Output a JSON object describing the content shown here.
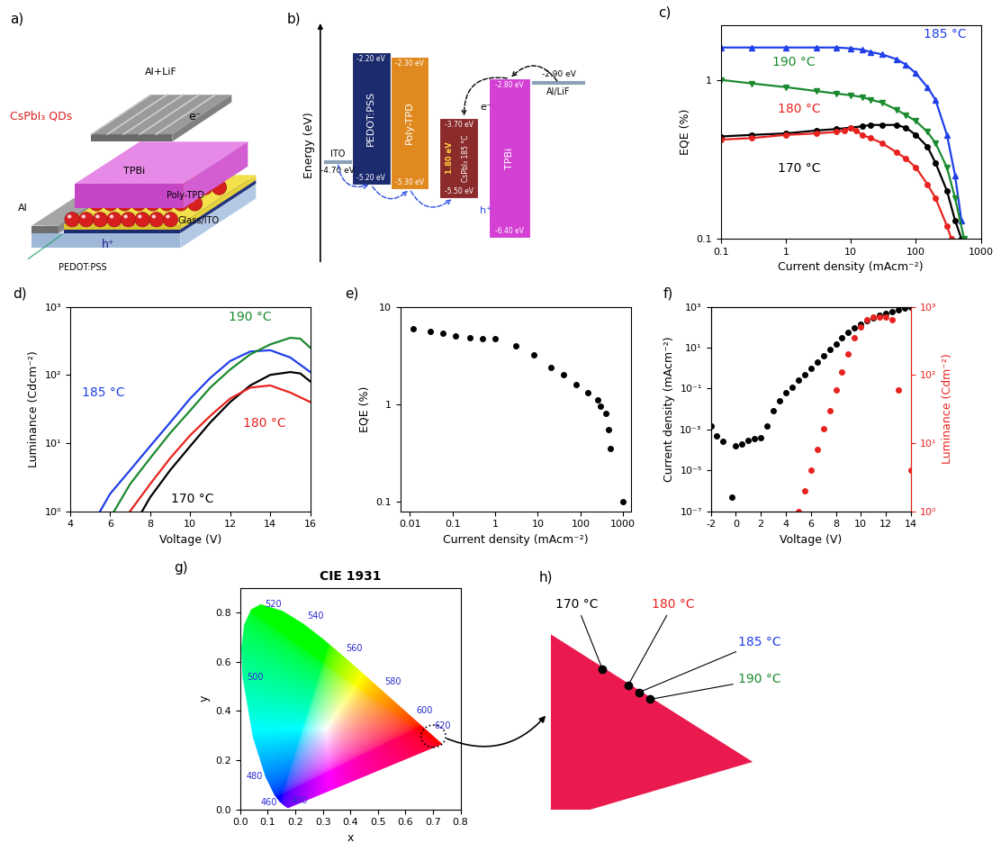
{
  "schematic": {
    "panel": "a)",
    "labels": {
      "qds": "CsPbI₃ QDs",
      "cathode": "Al+LiF",
      "etl": "TPBi",
      "htl": "Poly-TPD",
      "substrate": "Glass/ITO",
      "hil": "PEDOT:PSS",
      "contact": "Al",
      "electron": "e⁻",
      "hole": "h⁺"
    }
  },
  "energy_diagram": {
    "panel": "b)",
    "ylabel": "Energy (eV)",
    "ylim": [
      -7.0,
      -1.6
    ],
    "electrodes": [
      {
        "name": "ITO",
        "level": {
          "value": -4.7,
          "label": "-4.70 eV"
        }
      },
      {
        "name": "Al/LiF",
        "level": {
          "value": -2.9,
          "label": "-2.90 eV"
        }
      }
    ],
    "layers": [
      {
        "name": "PEDOT:PSS",
        "color": "#1c2b6e",
        "lumo": {
          "value": -2.2,
          "label": "-2.20 eV"
        },
        "homo": {
          "value": -5.2,
          "label": "-5.20 eV"
        }
      },
      {
        "name": "Poly-TPD",
        "color": "#e0891f",
        "lumo": {
          "value": -2.3,
          "label": "-2.30 eV"
        },
        "homo": {
          "value": -5.3,
          "label": "-5.30 eV"
        }
      },
      {
        "name": "CsPbI₃ 185 °C",
        "color": "#8b2b2b",
        "lumo": {
          "value": -3.7,
          "label": "-3.70 eV"
        },
        "homo": {
          "value": -5.5,
          "label": "-5.50 eV"
        },
        "gap": {
          "value": 1.8,
          "label": "1.80 eV"
        }
      },
      {
        "name": "TPBi",
        "color": "#d43fd4",
        "lumo": {
          "value": -2.8,
          "label": "-2.80 eV"
        },
        "homo": {
          "value": -6.4,
          "label": "-6.40 eV"
        }
      }
    ],
    "carriers": {
      "electron": "e⁻",
      "hole": "h⁺"
    }
  },
  "chart_data": [
    {
      "panel": "c)",
      "type": "line",
      "log": true,
      "xlabel": "Current density (mAcm⁻²)",
      "ylabel": "EQE (%)",
      "xlim": [
        0.1,
        1000
      ],
      "ylim": [
        0.1,
        2.2
      ],
      "xticks": [
        0.1,
        1,
        10,
        100,
        1000
      ],
      "yticks": [
        0.1,
        1
      ],
      "series": [
        {
          "name": "170 °C",
          "color": "#000000",
          "marker": "circle",
          "line_style": "solid",
          "x": [
            0.1,
            0.3,
            1,
            3,
            6,
            10,
            15,
            20,
            30,
            50,
            70,
            100,
            150,
            200,
            300,
            400,
            500
          ],
          "values": [
            0.44,
            0.45,
            0.46,
            0.48,
            0.49,
            0.5,
            0.51,
            0.52,
            0.52,
            0.52,
            0.5,
            0.45,
            0.38,
            0.3,
            0.2,
            0.13,
            0.1
          ]
        },
        {
          "name": "180 °C",
          "color": "#e8231f",
          "marker": "circle",
          "line_style": "solid",
          "x": [
            0.1,
            0.3,
            1,
            3,
            6,
            8,
            10,
            12,
            15,
            20,
            30,
            50,
            70,
            100,
            150,
            200,
            300,
            350
          ],
          "values": [
            0.42,
            0.43,
            0.45,
            0.46,
            0.47,
            0.48,
            0.5,
            0.48,
            0.45,
            0.43,
            0.4,
            0.35,
            0.32,
            0.28,
            0.22,
            0.18,
            0.12,
            0.1
          ]
        },
        {
          "name": "185 °C",
          "color": "#1f3fe8",
          "marker": "triangle_up",
          "line_style": "solid",
          "x": [
            0.1,
            0.3,
            1,
            3,
            6,
            10,
            15,
            20,
            30,
            50,
            70,
            100,
            150,
            200,
            300,
            400,
            500
          ],
          "values": [
            1.6,
            1.6,
            1.6,
            1.6,
            1.6,
            1.58,
            1.55,
            1.5,
            1.45,
            1.35,
            1.25,
            1.1,
            0.9,
            0.75,
            0.45,
            0.25,
            0.13
          ]
        },
        {
          "name": "190 °C",
          "color": "#1a8a2e",
          "marker": "triangle_down",
          "line_style": "solid",
          "x": [
            0.1,
            0.3,
            1,
            3,
            6,
            10,
            15,
            20,
            30,
            50,
            70,
            100,
            150,
            200,
            300,
            400,
            550
          ],
          "values": [
            1.0,
            0.95,
            0.9,
            0.85,
            0.82,
            0.8,
            0.78,
            0.75,
            0.72,
            0.65,
            0.6,
            0.55,
            0.47,
            0.4,
            0.28,
            0.18,
            0.1
          ]
        }
      ]
    },
    {
      "panel": "d)",
      "type": "line",
      "log": "y",
      "xlabel": "Voltage (V)",
      "ylabel": "Luminance (Cdcm⁻²)",
      "xlim": [
        4,
        16
      ],
      "ylim": [
        1,
        1000
      ],
      "xticks": [
        4,
        6,
        8,
        10,
        12,
        14,
        16
      ],
      "yticks": [
        {
          "value": 1,
          "label": "10⁰"
        },
        {
          "value": 10,
          "label": "10¹"
        },
        {
          "value": 100,
          "label": "10²"
        },
        {
          "value": 1000,
          "label": "10³"
        }
      ],
      "series": [
        {
          "name": "170 °C",
          "color": "#000000",
          "marker": "none",
          "line_style": "solid",
          "x": [
            7.6,
            8,
            9,
            10,
            11,
            12,
            13,
            14,
            15,
            15.5,
            16
          ],
          "values": [
            1,
            1.6,
            4,
            9,
            20,
            40,
            70,
            100,
            110,
            105,
            80
          ]
        },
        {
          "name": "180 °C",
          "color": "#e8231f",
          "marker": "none",
          "line_style": "solid",
          "x": [
            7,
            8,
            9,
            10,
            11,
            12,
            13,
            14,
            15,
            16
          ],
          "values": [
            1,
            2.5,
            6,
            13,
            25,
            45,
            65,
            70,
            55,
            40
          ]
        },
        {
          "name": "185 °C",
          "color": "#1f3fe8",
          "marker": "none",
          "line_style": "solid",
          "x": [
            5.5,
            6,
            7,
            8,
            9,
            10,
            11,
            12,
            13,
            14,
            15,
            16
          ],
          "values": [
            1,
            1.8,
            4,
            9,
            20,
            45,
            90,
            160,
            220,
            230,
            180,
            110
          ]
        },
        {
          "name": "190 °C",
          "color": "#1a8a2e",
          "marker": "none",
          "line_style": "solid",
          "x": [
            6.2,
            7,
            8,
            9,
            10,
            11,
            12,
            13,
            14,
            15,
            15.5,
            16
          ],
          "values": [
            1,
            2.5,
            6,
            14,
            30,
            65,
            120,
            200,
            280,
            350,
            340,
            250
          ]
        }
      ]
    },
    {
      "panel": "e)",
      "type": "scatter",
      "log": true,
      "xlabel": "Current density (mAcm⁻²)",
      "ylabel": "EQE (%)",
      "xlim": [
        0.006,
        1500
      ],
      "ylim": [
        0.08,
        10
      ],
      "xticks": [
        0.01,
        0.1,
        1,
        10,
        100,
        1000
      ],
      "yticks": [
        0.1,
        1,
        10
      ],
      "series": [
        {
          "color": "#000000",
          "marker": "circle",
          "line_style": "none",
          "x": [
            0.012,
            0.03,
            0.06,
            0.12,
            0.25,
            0.5,
            1,
            3,
            8,
            20,
            40,
            80,
            150,
            250,
            300,
            400,
            450,
            500,
            1000
          ],
          "values": [
            6.0,
            5.6,
            5.3,
            5.0,
            4.8,
            4.7,
            4.7,
            4.0,
            3.2,
            2.4,
            2.0,
            1.6,
            1.3,
            1.1,
            0.95,
            0.8,
            0.55,
            0.35,
            0.1
          ]
        }
      ]
    },
    {
      "panel": "f)",
      "type": "scatter",
      "log": "y",
      "xlabel": "Voltage (V)",
      "ylabel": "Current density (mAcm⁻²)",
      "y2label": "Luminance (Cdm⁻²)",
      "xlim": [
        -2,
        14
      ],
      "ylim": [
        1e-07,
        1000
      ],
      "y2lim": [
        1,
        1000
      ],
      "xticks": [
        -2,
        0,
        2,
        4,
        6,
        8,
        10,
        12,
        14
      ],
      "yticks": [
        {
          "value": 1e-07,
          "label": "10⁻⁷"
        },
        {
          "value": 1e-05,
          "label": "10⁻⁵"
        },
        {
          "value": 0.001,
          "label": "10⁻³"
        },
        {
          "value": 0.1,
          "label": "10⁻¹"
        },
        {
          "value": 10,
          "label": "10¹"
        },
        {
          "value": 1000,
          "label": "10³"
        }
      ],
      "y2ticks": [
        {
          "value": 1,
          "label": "10⁰"
        },
        {
          "value": 10,
          "label": "10¹"
        },
        {
          "value": 100,
          "label": "10²"
        },
        {
          "value": 1000,
          "label": "10³"
        }
      ],
      "series": [
        {
          "color": "#000000",
          "marker": "circle",
          "line_style": "none",
          "x": [
            -2,
            -1.5,
            -1,
            -0.3,
            0,
            0.5,
            1,
            1.5,
            2,
            2.5,
            3,
            3.5,
            4,
            4.5,
            5,
            5.5,
            6,
            6.5,
            7,
            7.5,
            8,
            8.5,
            9,
            9.5,
            10,
            10.5,
            11,
            11.5,
            12,
            12.5,
            13,
            13.5,
            14
          ],
          "values": [
            0.0015,
            0.0005,
            0.00025,
            5e-07,
            0.00015,
            0.0002,
            0.0003,
            0.00035,
            0.0004,
            0.0015,
            0.008,
            0.025,
            0.06,
            0.12,
            0.25,
            0.5,
            1,
            2,
            4,
            8,
            15,
            30,
            55,
            90,
            140,
            200,
            280,
            380,
            480,
            580,
            700,
            850,
            1000
          ]
        },
        {
          "color": "#e8231f",
          "marker": "circle",
          "line_style": "none",
          "axis": "y2",
          "x": [
            5,
            5.5,
            6,
            6.5,
            7,
            7.5,
            8,
            8.5,
            9,
            9.5,
            10,
            10.5,
            11,
            11.5,
            12,
            12.5,
            13,
            14
          ],
          "values": [
            1,
            2,
            4,
            8,
            16,
            30,
            60,
            110,
            200,
            350,
            500,
            650,
            700,
            700,
            700,
            650,
            60,
            4
          ]
        }
      ]
    },
    {
      "panel": "g)",
      "type": "chromaticity",
      "title": "CIE 1931",
      "xlabel": "x",
      "ylabel": "y",
      "xlim": [
        0,
        0.8
      ],
      "ylim": [
        0,
        0.9
      ],
      "xticks": [
        {
          "value": 0,
          "label": "0.0"
        },
        0.1,
        0.2,
        0.3,
        0.4,
        0.5,
        0.6,
        0.7,
        0.8
      ],
      "yticks": [
        {
          "value": 0,
          "label": "0.0"
        },
        0.2,
        0.4,
        0.6,
        0.8
      ],
      "locus": {
        "x": [
          0.1733,
          0.1644,
          0.1566,
          0.144,
          0.1241,
          0.0913,
          0.0454,
          0.0082,
          0.0039,
          0.0139,
          0.0389,
          0.0743,
          0.1547,
          0.2296,
          0.3016,
          0.3731,
          0.4441,
          0.5125,
          0.5752,
          0.627,
          0.6658,
          0.6915,
          0.719,
          0.7347
        ],
        "y": [
          0.0048,
          0.0109,
          0.0177,
          0.0297,
          0.0578,
          0.1327,
          0.295,
          0.5384,
          0.6548,
          0.7502,
          0.812,
          0.8338,
          0.8059,
          0.7543,
          0.6923,
          0.6245,
          0.5547,
          0.4866,
          0.4242,
          0.3725,
          0.334,
          0.3083,
          0.2809,
          0.2653
        ],
        "labels": [
          "400",
          null,
          null,
          "460",
          null,
          "480",
          null,
          "500",
          null,
          null,
          null,
          "520",
          null,
          "540",
          null,
          "560",
          null,
          "580",
          null,
          "600",
          null,
          "620",
          null,
          null
        ]
      }
    },
    {
      "panel": "h)",
      "type": "scatter",
      "tick_labels": false,
      "xlim": [
        0.68,
        0.745
      ],
      "ylim": [
        0.245,
        0.325
      ],
      "series": [
        {
          "color": "#000000",
          "marker": "circle",
          "line_style": "none",
          "x": [
            0.694,
            0.701,
            0.704,
            0.707
          ],
          "values": [
            0.305,
            0.298,
            0.295,
            0.292
          ],
          "labels": [
            "170 °C",
            "180 °C",
            "185 °C",
            "190 °C"
          ],
          "colors": [
            "#000000",
            "#e8231f",
            "#1f3fe8",
            "#1a8a2e"
          ]
        }
      ]
    }
  ]
}
